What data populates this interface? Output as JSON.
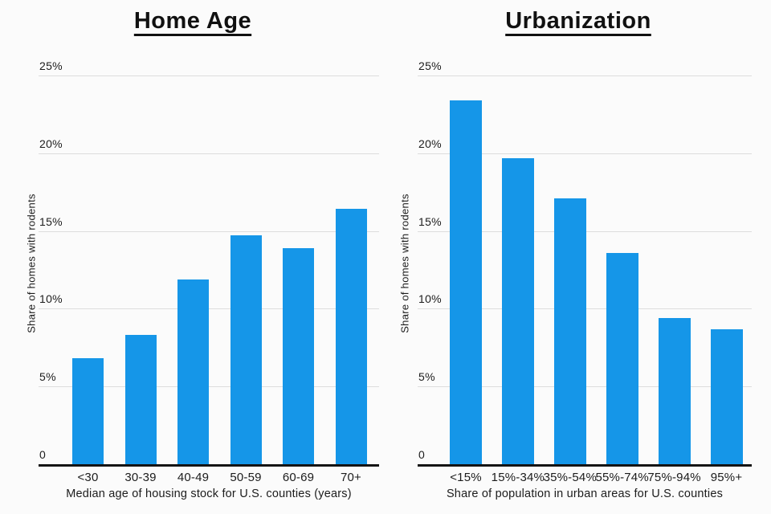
{
  "colors": {
    "bar": "#1596e8",
    "gridline": "#dddddd",
    "axis": "#141414",
    "text": "#1c1c1c",
    "background": "#fbfbfb"
  },
  "chart_data": [
    {
      "type": "bar",
      "title": "Home Age",
      "categories": [
        "<30",
        "30-39",
        "40-49",
        "50-59",
        "60-69",
        "70+"
      ],
      "values": [
        6.8,
        8.3,
        11.9,
        14.7,
        13.9,
        16.4
      ],
      "xlabel": "Median age of housing stock for U.S. counties (years)",
      "ylabel": "Share of homes with rodents",
      "ylim": [
        0,
        25
      ],
      "yticks": [
        25,
        20,
        15,
        10,
        5,
        0
      ],
      "ytick_labels": [
        "25%",
        "20%",
        "15%",
        "10%",
        "5%",
        "0"
      ],
      "grid": true,
      "legend": "none",
      "bar_color": "#1596e8"
    },
    {
      "type": "bar",
      "title": "Urbanization",
      "categories": [
        "<15%",
        "15%-34%",
        "35%-54%",
        "55%-74%",
        "75%-94%",
        "95%+"
      ],
      "values": [
        23.4,
        19.7,
        17.1,
        13.6,
        9.4,
        8.7
      ],
      "xlabel": "Share of population in urban areas for U.S. counties",
      "ylabel": "Share of homes with rodents",
      "ylim": [
        0,
        25
      ],
      "yticks": [
        25,
        20,
        15,
        10,
        5,
        0
      ],
      "ytick_labels": [
        "25%",
        "20%",
        "15%",
        "10%",
        "5%",
        "0"
      ],
      "grid": true,
      "legend": "none",
      "bar_color": "#1596e8"
    }
  ]
}
